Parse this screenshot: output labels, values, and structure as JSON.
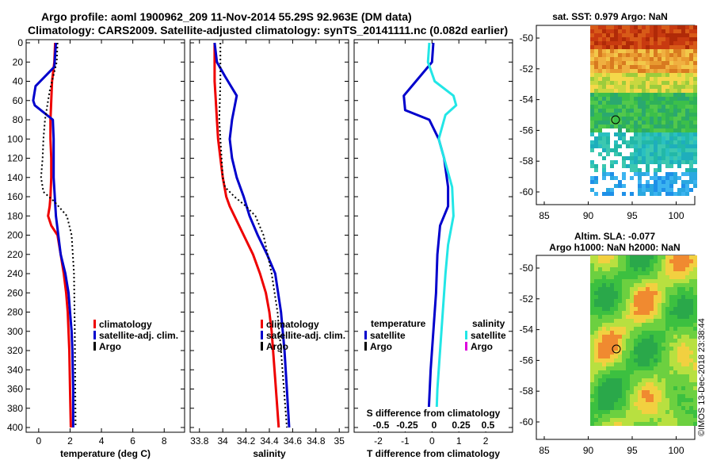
{
  "header": {
    "line1": "Argo profile: aoml 1900962_209 11-Nov-2014 55.29S 92.963E (DM data)",
    "line2": "Climatology: CARS2009. Satellite-adjusted climatology: synTS_20141111.nc (0.082d earlier)"
  },
  "credit": "©IMOS 13-Dec-2018 23:38:44",
  "colors": {
    "climatology": "#ee0000",
    "satellite": "#0000cc",
    "argo": "#000000",
    "satellite_salinity": "#22e6e6",
    "argo_salinity": "#dd00dd"
  },
  "chart_data": [
    {
      "type": "line",
      "xlabel": "temperature (deg C)",
      "xticks": [
        0,
        2,
        4,
        6,
        8
      ],
      "xlim": [
        -0.8,
        9.3
      ],
      "yticks": [
        0,
        20,
        40,
        60,
        80,
        100,
        120,
        140,
        160,
        180,
        200,
        220,
        240,
        260,
        280,
        300,
        320,
        340,
        360,
        380,
        400
      ],
      "ylim": [
        0,
        400
      ],
      "y_inverted": true,
      "legend": [
        "climatology",
        "satellite-adj. clim.",
        "Argo"
      ],
      "series": [
        {
          "name": "climatology",
          "color": "#ee0000",
          "style": "solid",
          "x": [
            1.05,
            1.0,
            0.85,
            0.8,
            0.75,
            0.75,
            0.8,
            0.8,
            0.75,
            0.7,
            0.6,
            0.8,
            1.2,
            1.4,
            1.6,
            1.75,
            1.85,
            1.9,
            1.95,
            2.0,
            2.05
          ],
          "y": [
            0,
            20,
            40,
            60,
            80,
            100,
            120,
            140,
            160,
            170,
            180,
            190,
            200,
            220,
            240,
            260,
            280,
            300,
            320,
            360,
            400
          ]
        },
        {
          "name": "satellite-adj. clim.",
          "color": "#0000cc",
          "style": "solid",
          "x": [
            1.1,
            1.0,
            -0.2,
            -0.35,
            -0.25,
            0.9,
            0.95,
            0.95,
            0.95,
            1.1,
            1.4,
            1.7,
            1.9,
            2.0,
            2.1,
            2.15,
            2.2,
            2.2
          ],
          "y": [
            0,
            25,
            45,
            60,
            65,
            80,
            100,
            120,
            140,
            180,
            220,
            240,
            260,
            280,
            300,
            320,
            360,
            400
          ]
        },
        {
          "name": "Argo",
          "color": "#000000",
          "style": "dotted",
          "x": [
            1.2,
            1.15,
            0.7,
            0.4,
            0.3,
            0.25,
            0.15,
            0.3,
            1.0,
            1.8,
            2.1,
            2.25,
            2.3,
            2.35
          ],
          "y": [
            0,
            20,
            50,
            80,
            100,
            120,
            140,
            155,
            165,
            180,
            200,
            240,
            300,
            400
          ]
        }
      ]
    },
    {
      "type": "line",
      "xlabel": "salinity",
      "xticks": [
        33.8,
        34,
        34.2,
        34.4,
        34.6,
        34.8,
        35
      ],
      "xlim": [
        33.72,
        35.08
      ],
      "yticks": [
        0,
        20,
        40,
        60,
        80,
        100,
        120,
        140,
        160,
        180,
        200,
        220,
        240,
        260,
        280,
        300,
        320,
        340,
        360,
        380,
        400
      ],
      "ylim": [
        0,
        400
      ],
      "y_inverted": true,
      "legend": [
        "climatology",
        "satellite-adj. clim.",
        "Argo"
      ],
      "series": [
        {
          "name": "climatology",
          "color": "#ee0000",
          "style": "solid",
          "x": [
            33.93,
            33.93,
            33.93,
            33.94,
            33.95,
            33.96,
            33.98,
            34.0,
            34.03,
            34.06,
            34.1,
            34.18,
            34.26,
            34.32,
            34.37,
            34.4,
            34.42,
            34.45,
            34.48
          ],
          "y": [
            0,
            20,
            40,
            60,
            80,
            100,
            120,
            140,
            160,
            170,
            180,
            200,
            220,
            240,
            260,
            280,
            300,
            350,
            400
          ]
        },
        {
          "name": "satellite-adj. clim.",
          "color": "#0000cc",
          "style": "solid",
          "x": [
            33.93,
            33.95,
            34.02,
            34.12,
            34.08,
            34.06,
            34.08,
            34.12,
            34.18,
            34.23,
            34.3,
            34.38,
            34.45,
            34.5,
            34.53,
            34.55,
            34.57
          ],
          "y": [
            0,
            20,
            35,
            55,
            80,
            100,
            120,
            140,
            160,
            180,
            200,
            220,
            240,
            280,
            320,
            360,
            400
          ]
        },
        {
          "name": "Argo",
          "color": "#000000",
          "style": "dotted",
          "x": [
            33.98,
            33.98,
            33.97,
            33.98,
            33.99,
            34.0,
            34.02,
            34.1,
            34.2,
            34.28,
            34.35,
            34.42,
            34.47,
            34.5,
            34.55
          ],
          "y": [
            0,
            40,
            80,
            100,
            120,
            140,
            150,
            160,
            170,
            180,
            200,
            240,
            280,
            320,
            400
          ]
        }
      ]
    },
    {
      "type": "line",
      "xlabel": "T difference from climatology",
      "xticks": [
        -2,
        -1,
        0,
        1,
        2
      ],
      "xlim": [
        -2.9,
        3.0
      ],
      "top_axis_label": "S difference from climatology",
      "top_xticks": [
        "-0.5",
        "-0.25",
        "0",
        "0.25",
        "0.5"
      ],
      "yticks": [
        0,
        20,
        40,
        60,
        80,
        100,
        120,
        140,
        160,
        180,
        200,
        220,
        240,
        260,
        280,
        300,
        320,
        340,
        360,
        380,
        400
      ],
      "ylim": [
        0,
        400
      ],
      "y_inverted": true,
      "legend_headers": [
        "temperature",
        "salinity"
      ],
      "legend_temperature": [
        "satellite",
        "Argo"
      ],
      "legend_salinity": [
        "satellite",
        "Argo"
      ],
      "series": [
        {
          "name": "satellite",
          "color": "#0000cc",
          "style": "solid",
          "x": [
            0.05,
            0.0,
            -0.6,
            -1.05,
            -1.0,
            -0.1,
            0.25,
            0.45,
            0.6,
            0.6,
            0.3,
            0.2,
            0.15,
            0.05,
            -0.05,
            -0.1,
            -0.15
          ],
          "y": [
            0,
            20,
            40,
            55,
            70,
            80,
            100,
            120,
            150,
            170,
            190,
            220,
            260,
            300,
            340,
            370,
            400
          ]
        },
        {
          "name": "satellite",
          "color": "#22e6e6",
          "style": "solid",
          "x": [
            -0.1,
            -0.15,
            0.1,
            0.8,
            0.9,
            0.5,
            0.25,
            0.45,
            0.75,
            0.8,
            0.6,
            0.5,
            0.4,
            0.3,
            0.2,
            0.15
          ],
          "y": [
            0,
            20,
            40,
            55,
            65,
            75,
            100,
            120,
            150,
            180,
            210,
            240,
            280,
            320,
            360,
            400
          ]
        }
      ]
    }
  ],
  "maps": [
    {
      "title": "sat. SST: 0.979 Argo: NaN",
      "xticks": [
        "85",
        "90",
        "95",
        "100"
      ],
      "yticks": [
        "-50",
        "-52",
        "-54",
        "-56",
        "-58",
        "-60"
      ]
    },
    {
      "title_line1": "Altim. SLA: -0.077",
      "title_line2": "Argo h1000: NaN h2000: NaN",
      "xticks": [
        "85",
        "90",
        "95",
        "100"
      ],
      "yticks": [
        "-50",
        "-52",
        "-54",
        "-56",
        "-58",
        "-60"
      ]
    }
  ]
}
